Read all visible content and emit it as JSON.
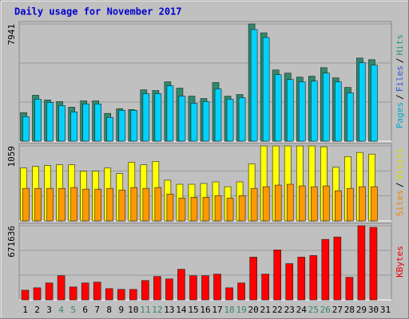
{
  "chart_data": {
    "type": "bar",
    "title": "Daily usage for November 2017",
    "legend_separator": "/",
    "categories": [
      "1",
      "2",
      "3",
      "4",
      "5",
      "6",
      "7",
      "8",
      "9",
      "10",
      "11",
      "12",
      "13",
      "14",
      "15",
      "16",
      "17",
      "18",
      "19",
      "20",
      "21",
      "22",
      "23",
      "24",
      "25",
      "26",
      "27",
      "28",
      "29",
      "30",
      "31"
    ],
    "category_colors": [
      "#000000",
      "#000000",
      "#000000",
      "#338866",
      "#338866",
      "#000000",
      "#000000",
      "#000000",
      "#000000",
      "#000000",
      "#338866",
      "#338866",
      "#000000",
      "#000000",
      "#000000",
      "#000000",
      "#000000",
      "#338866",
      "#338866",
      "#000000",
      "#000000",
      "#000000",
      "#000000",
      "#000000",
      "#338866",
      "#338866",
      "#000000",
      "#000000",
      "#000000",
      "#000000",
      "#000000"
    ],
    "panels": [
      {
        "ylim": [
          0,
          7941
        ],
        "yticks": [
          7941
        ],
        "legend": [
          "Pages",
          "Files",
          "Hits"
        ],
        "legend_colors": [
          "#00aacc",
          "#3355dd",
          "#339977"
        ],
        "series": [
          {
            "name": "Hits",
            "color": "#2e8a6c",
            "values": [
              1930,
              3110,
              2790,
              2680,
              2300,
              2730,
              2730,
              1880,
              2200,
              2140,
              3480,
              3430,
              4020,
              3590,
              3050,
              2890,
              3970,
              3050,
              3160,
              7941,
              7340,
              4820,
              4610,
              4340,
              4400,
              4980,
              4290,
              3640,
              5630,
              5520,
              null
            ]
          },
          {
            "name": "Pages",
            "color": "#00d2ff",
            "values": [
              1660,
              2840,
              2620,
              2410,
              1980,
              2520,
              2520,
              1610,
              2090,
              2090,
              3220,
              3220,
              3750,
              3050,
              2570,
              2680,
              3540,
              2840,
              2950,
              7560,
              7020,
              4500,
              4180,
              4020,
              4070,
              4610,
              4020,
              3270,
              5310,
              5150,
              null
            ]
          }
        ]
      },
      {
        "ylim": [
          0,
          1059
        ],
        "yticks": [
          1059
        ],
        "legend": [
          "Sites",
          "Visits"
        ],
        "legend_colors": [
          "#ee8800",
          "#dddd00"
        ],
        "series": [
          {
            "name": "Visits",
            "color": "#ffff00",
            "values": [
              748,
              771,
              783,
              794,
              794,
              702,
              702,
              748,
              668,
              829,
              794,
              840,
              575,
              518,
              518,
              529,
              552,
              483,
              552,
              806,
              1059,
              1059,
              1059,
              1059,
              1059,
              1047,
              759,
              909,
              967,
              944,
              null
            ]
          },
          {
            "name": "Sites",
            "color": "#ff9900",
            "values": [
              460,
              460,
              460,
              460,
              472,
              449,
              449,
              460,
              437,
              472,
              460,
              472,
              380,
              322,
              334,
              334,
              357,
              322,
              357,
              460,
              483,
              506,
              518,
              495,
              483,
              495,
              426,
              460,
              483,
              483,
              null
            ]
          }
        ]
      },
      {
        "ylim": [
          0,
          671636
        ],
        "yticks": [
          671636
        ],
        "legend": [
          "KBytes"
        ],
        "legend_colors": [
          "#ee0000"
        ],
        "series": [
          {
            "name": "KBytes",
            "color": "#ff0000",
            "values": [
              87600,
              109500,
              153300,
              219000,
              116800,
              153300,
              160600,
              102200,
              94900,
              94900,
              175200,
              211700,
              189800,
              277400,
              219000,
              219000,
              233600,
              109500,
              153300,
              386900,
              233600,
              452600,
              328500,
              386900,
              401500,
              547500,
              569400,
              204400,
              671636,
              657000,
              null
            ]
          }
        ]
      }
    ]
  }
}
